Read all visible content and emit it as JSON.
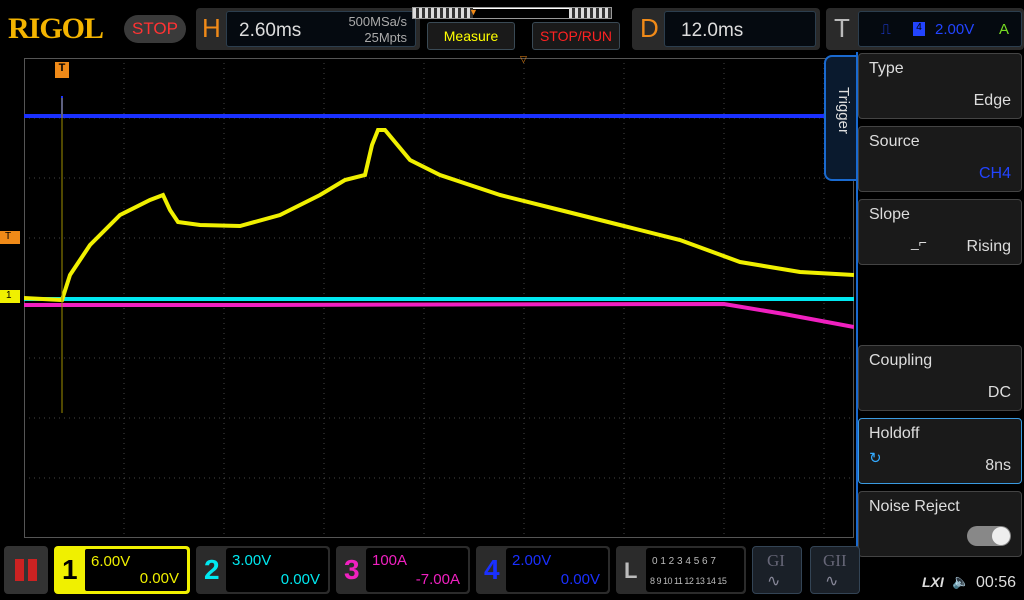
{
  "header": {
    "brand": "RIGOL",
    "run_state": "STOP",
    "h_label": "H",
    "timebase": "2.60ms",
    "sample_rate": "500MSa/s",
    "memory_depth": "25Mpts",
    "measure": "Measure",
    "stop_run": "STOP/RUN",
    "d_label": "D",
    "delay": "12.0ms",
    "t_label": "T",
    "trigger_level": "2.00V",
    "trigger_mode": "A"
  },
  "menu": {
    "tab": "Trigger",
    "items": [
      {
        "title": "Type",
        "value": "Edge"
      },
      {
        "title": "Source",
        "value": "CH4"
      },
      {
        "title": "Slope",
        "value": "Rising"
      },
      {
        "title": "Coupling",
        "value": "DC"
      },
      {
        "title": "Holdoff",
        "value": "8ns"
      },
      {
        "title": "Noise Reject",
        "value": "off"
      }
    ]
  },
  "channels": [
    {
      "num": "1",
      "scale": "6.00V",
      "offset": "0.00V",
      "color": "#f0f000"
    },
    {
      "num": "2",
      "scale": "3.00V",
      "offset": "0.00V",
      "color": "#00e8f0"
    },
    {
      "num": "3",
      "scale": "100A",
      "offset": "-7.00A",
      "color": "#f020c0"
    },
    {
      "num": "4",
      "scale": "2.00V",
      "offset": "0.00V",
      "color": "#1a30ff"
    }
  ],
  "logic": {
    "label": "L",
    "row1": "0 1 2 3  4 5 6 7",
    "row2": "8 9 10 11 12 13 14 15"
  },
  "generators": [
    "GI",
    "GII"
  ],
  "status": {
    "lxi": "LXI",
    "time": "00:56"
  },
  "markers": {
    "trigger": "T",
    "ch1": "1"
  },
  "colors": {
    "accent": "#f08a18",
    "ch1": "#f0f000",
    "ch2": "#00e8f0",
    "ch3": "#f020c0",
    "ch4": "#1a30ff"
  }
}
